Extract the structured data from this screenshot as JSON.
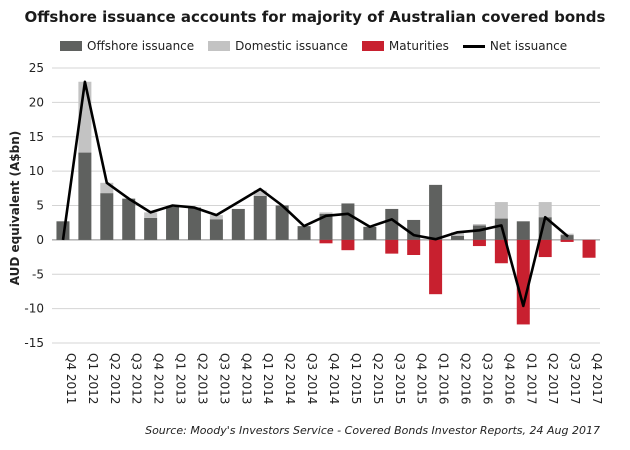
{
  "chart_data": {
    "type": "bar",
    "title": "Offshore issuance accounts for majority of Australian covered bonds",
    "ylabel": "AUD equivalent (A$bn)",
    "xlabel": "",
    "ylim": [
      -15,
      25
    ],
    "yticks": [
      25,
      20,
      15,
      10,
      5,
      0,
      -5,
      -10,
      -15
    ],
    "grid": true,
    "legend_position": "top",
    "categories": [
      "Q4 2011",
      "Q1 2012",
      "Q2 2012",
      "Q3 2012",
      "Q4 2012",
      "Q1 2013",
      "Q2 2013",
      "Q3 2013",
      "Q4 2013",
      "Q1 2014",
      "Q2 2014",
      "Q3 2014",
      "Q4 2014",
      "Q1 2015",
      "Q2 2015",
      "Q3 2015",
      "Q4 2015",
      "Q1 2016",
      "Q2 2016",
      "Q3 2016",
      "Q4 2016",
      "Q1 2017",
      "Q2 2017",
      "Q3 2017",
      "Q4 2017"
    ],
    "series": [
      {
        "name": "Offshore issuance",
        "type": "stacked-bar",
        "color": "#5f615f",
        "values": [
          2.7,
          12.7,
          6.8,
          6.0,
          3.2,
          4.8,
          4.7,
          3.0,
          4.5,
          6.4,
          5.0,
          2.0,
          3.8,
          5.3,
          1.9,
          4.5,
          2.9,
          8.0,
          0.6,
          2.1,
          3.1,
          2.7,
          3.3,
          0.7,
          0
        ]
      },
      {
        "name": "Domestic issuance",
        "type": "stacked-bar",
        "color": "#c3c3c3",
        "values": [
          0,
          10.3,
          1.5,
          0,
          0.8,
          0,
          0,
          0.6,
          0,
          0.8,
          0,
          0,
          0.2,
          0,
          0,
          0,
          0,
          0,
          0.5,
          0.2,
          2.4,
          0,
          2.2,
          0.2,
          0
        ]
      },
      {
        "name": "Maturities",
        "type": "bar",
        "color": "#c8202f",
        "values": [
          0,
          0,
          0,
          0,
          0,
          0,
          0,
          0,
          0,
          0,
          0,
          0,
          -0.5,
          -1.5,
          0,
          -2.0,
          -2.2,
          -7.9,
          0,
          -0.9,
          -3.4,
          -12.3,
          -2.5,
          -0.3,
          -2.6
        ]
      },
      {
        "name": "Net issuance",
        "type": "line",
        "color": "#000000",
        "values": [
          null,
          23.0,
          8.3,
          6.0,
          4.0,
          5.0,
          4.7,
          3.6,
          5.5,
          7.4,
          5.0,
          2.0,
          3.5,
          3.8,
          1.9,
          3.0,
          0.7,
          0.1,
          1.1,
          1.4,
          2.1,
          -9.6,
          3.3,
          0.6,
          null
        ]
      }
    ]
  },
  "source_note": "Source: Moody's Investors Service - Covered Bonds Investor Reports, 24 Aug 2017"
}
